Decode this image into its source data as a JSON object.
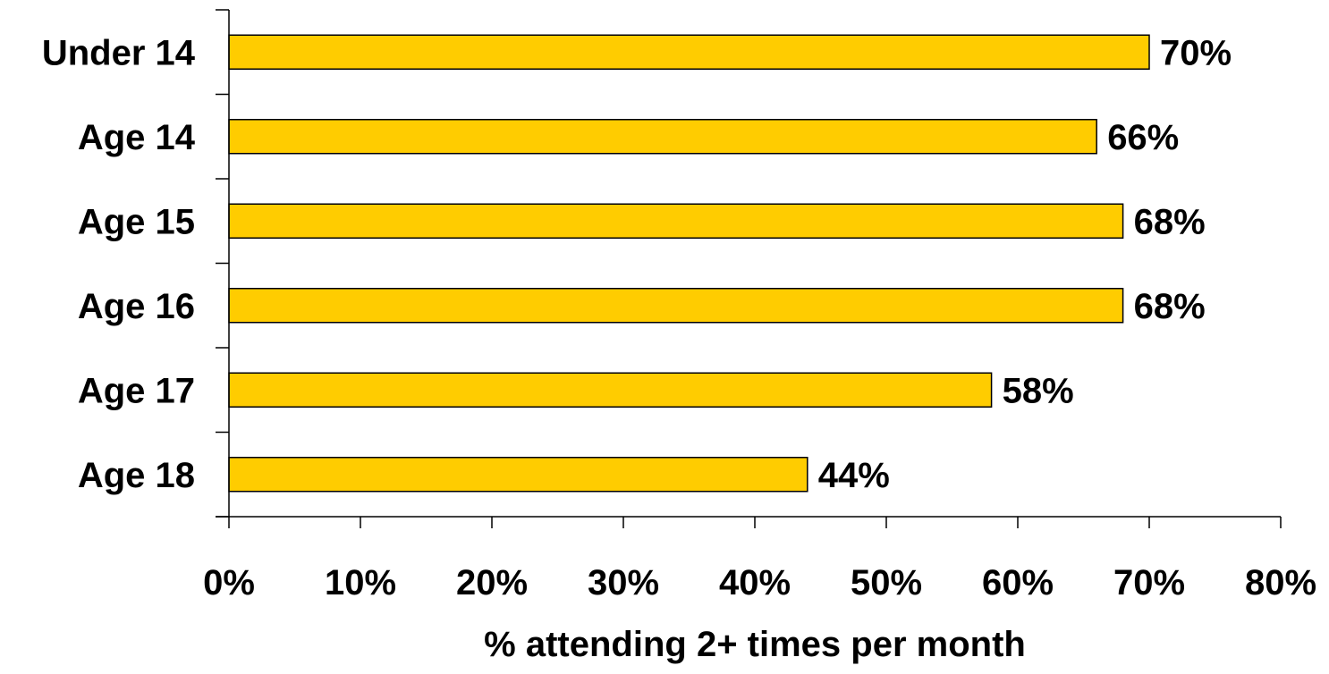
{
  "chart_data": {
    "type": "bar",
    "orientation": "horizontal",
    "categories": [
      "Under 14",
      "Age 14",
      "Age 15",
      "Age 16",
      "Age 17",
      "Age 18"
    ],
    "values": [
      70,
      66,
      68,
      68,
      58,
      44
    ],
    "data_labels": [
      "70%",
      "66%",
      "68%",
      "68%",
      "58%",
      "44%"
    ],
    "title": "",
    "xlabel": "% attending 2+ times per month",
    "ylabel": "",
    "xlim": [
      0,
      80
    ],
    "x_ticks": [
      0,
      10,
      20,
      30,
      40,
      50,
      60,
      70,
      80
    ],
    "x_tick_labels": [
      "0%",
      "10%",
      "20%",
      "30%",
      "40%",
      "50%",
      "60%",
      "70%",
      "80%"
    ],
    "grid": false,
    "legend": "none",
    "bar_color": "#FFCC00",
    "bar_outline_color": "#000000"
  }
}
